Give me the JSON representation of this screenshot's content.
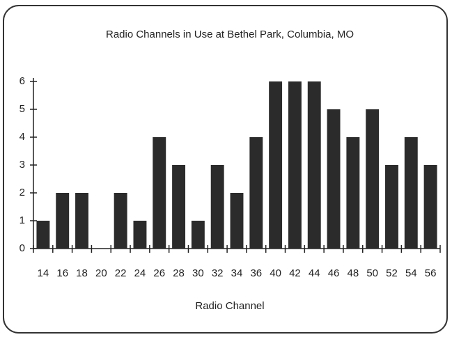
{
  "chart_data": {
    "type": "bar",
    "title": "Radio Channels in Use at Bethel Park, Columbia, MO",
    "x_label": "Radio Channel",
    "categories": [
      "14",
      "16",
      "18",
      "20",
      "22",
      "24",
      "26",
      "28",
      "30",
      "32",
      "34",
      "36",
      "40",
      "42",
      "44",
      "46",
      "48",
      "50",
      "52",
      "54",
      "56"
    ],
    "values": [
      1,
      2,
      2,
      0,
      2,
      1,
      4,
      3,
      1,
      3,
      2,
      4,
      6,
      6,
      6,
      5,
      4,
      5,
      3,
      4,
      3
    ],
    "color": "#2b2b2b",
    "ylim": [
      0,
      6
    ],
    "yticks": [
      0,
      1,
      2,
      3,
      4,
      5,
      6
    ]
  }
}
